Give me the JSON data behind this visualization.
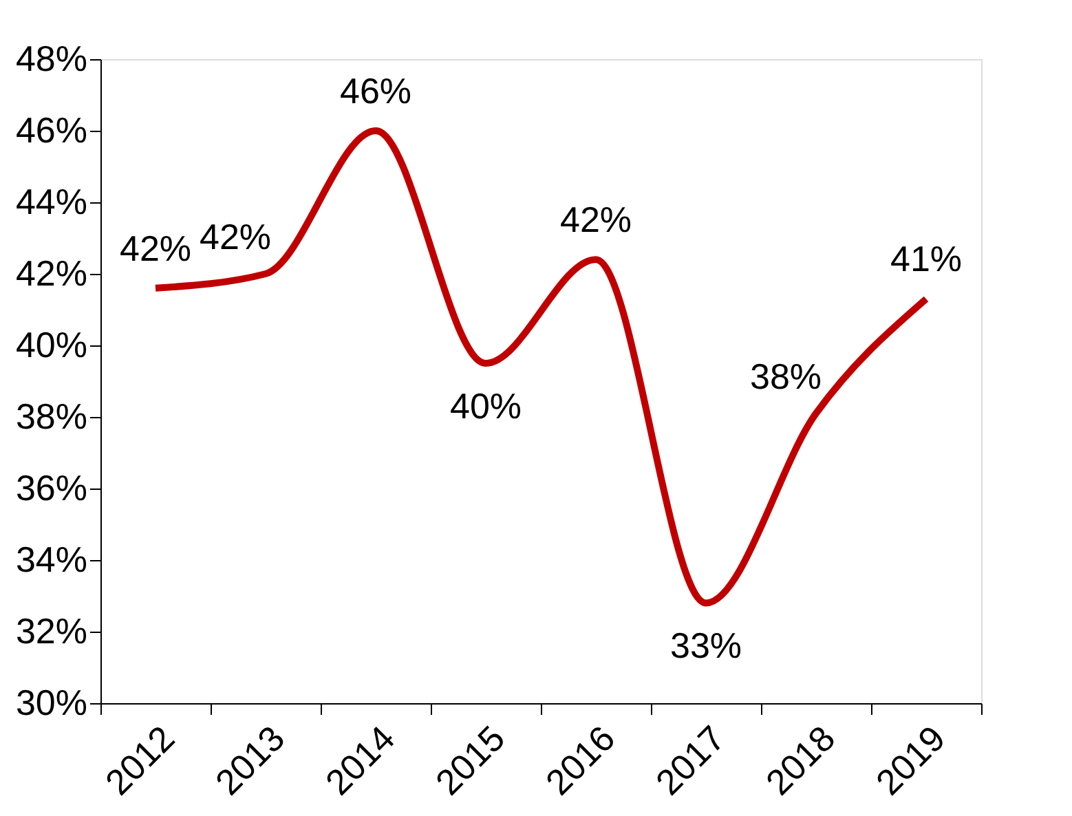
{
  "chart_data": {
    "type": "line",
    "categories": [
      "2012",
      "2013",
      "2014",
      "2015",
      "2016",
      "2017",
      "2018",
      "2019"
    ],
    "series": [
      {
        "color": "#c00000",
        "values": [
          41.6,
          42.0,
          46.0,
          39.5,
          42.4,
          32.8,
          38.1,
          41.3
        ],
        "value_labels": [
          "42%",
          "42%",
          "46%",
          "40%",
          "42%",
          "33%",
          "38%",
          "41%"
        ]
      }
    ],
    "ylim": [
      30,
      48
    ],
    "yticks": [
      {
        "value": 30,
        "label": "30%"
      },
      {
        "value": 32,
        "label": "32%"
      },
      {
        "value": 34,
        "label": "34%"
      },
      {
        "value": 36,
        "label": "36%"
      },
      {
        "value": 38,
        "label": "38%"
      },
      {
        "value": 40,
        "label": "40%"
      },
      {
        "value": 42,
        "label": "42%"
      },
      {
        "value": 44,
        "label": "44%"
      },
      {
        "value": 46,
        "label": "46%"
      },
      {
        "value": 48,
        "label": "48%"
      }
    ],
    "grid": false,
    "marker": "none",
    "line_style": "solid"
  }
}
